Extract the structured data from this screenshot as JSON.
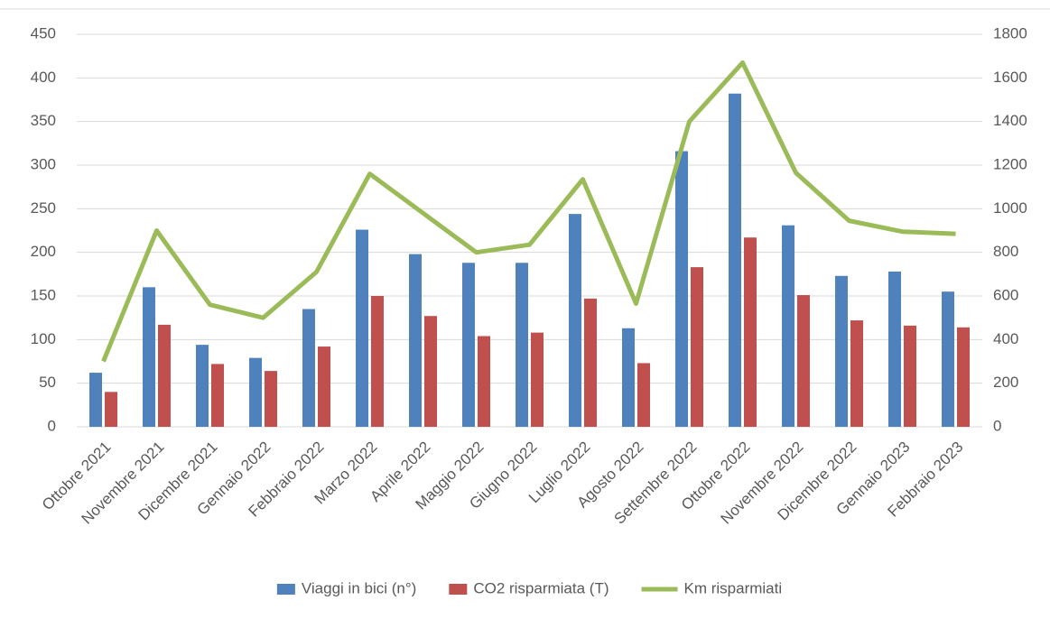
{
  "chart_data": {
    "type": "bar",
    "categories": [
      "Ottobre 2021",
      "Novembre 2021",
      "Dicembre 2021",
      "Gennaio 2022",
      "Febbraio 2022",
      "Marzo 2022",
      "Aprile 2022",
      "Maggio 2022",
      "Giugno 2022",
      "Luglio 2022",
      "Agosto 2022",
      "Settembre 2022",
      "Ottobre 2022",
      "Novembre 2022",
      "Dicembre 2022",
      "Gennaio 2023",
      "Febbraio 2023"
    ],
    "series": [
      {
        "name": "Viaggi in bici (n°)",
        "type": "bar",
        "color": "#4f81bd",
        "values": [
          62,
          160,
          94,
          79,
          135,
          226,
          198,
          188,
          188,
          244,
          113,
          316,
          382,
          231,
          173,
          178,
          155
        ]
      },
      {
        "name": "CO2 risparmiata (T)",
        "type": "bar",
        "color": "#c0504d",
        "values": [
          40,
          117,
          72,
          64,
          92,
          150,
          127,
          104,
          108,
          147,
          73,
          183,
          217,
          151,
          122,
          116,
          114
        ]
      },
      {
        "name": "Km risparmiati",
        "type": "line",
        "axis": "y2",
        "color": "#9bbb59",
        "values": [
          300,
          900,
          560,
          500,
          710,
          1160,
          980,
          800,
          835,
          1135,
          565,
          1400,
          1670,
          1165,
          945,
          895,
          885
        ]
      }
    ],
    "ylim": [
      0,
      450
    ],
    "yticks": [
      0,
      50,
      100,
      150,
      200,
      250,
      300,
      350,
      400,
      450
    ],
    "y2lim": [
      0,
      1800
    ],
    "y2ticks": [
      0,
      200,
      400,
      600,
      800,
      1000,
      1200,
      1400,
      1600,
      1800
    ],
    "grid": true,
    "legend": "bottom"
  }
}
